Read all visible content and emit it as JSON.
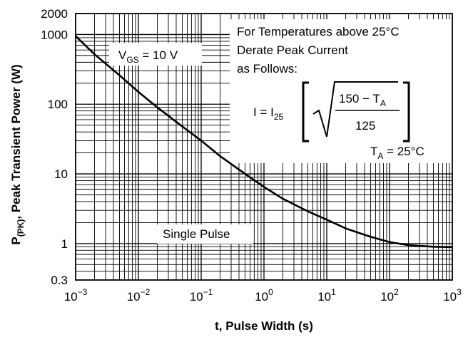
{
  "chart_data": {
    "type": "line",
    "xscale": "log",
    "yscale": "log",
    "xlim": [
      0.001,
      1000
    ],
    "ylim": [
      0.3,
      2000
    ],
    "x_ticks": [
      {
        "value": 0.001,
        "base": "10",
        "exp": "−3"
      },
      {
        "value": 0.01,
        "base": "10",
        "exp": "−2"
      },
      {
        "value": 0.1,
        "base": "10",
        "exp": "−1"
      },
      {
        "value": 1,
        "base": "10",
        "exp": "0"
      },
      {
        "value": 10,
        "base": "10",
        "exp": "1"
      },
      {
        "value": 100,
        "base": "10",
        "exp": "2"
      },
      {
        "value": 1000,
        "base": "10",
        "exp": "3"
      }
    ],
    "y_ticks": [
      {
        "value": 2000,
        "label": "2000"
      },
      {
        "value": 1000,
        "label": "1000"
      },
      {
        "value": 100,
        "label": "100"
      },
      {
        "value": 10,
        "label": "10"
      },
      {
        "value": 1,
        "label": "1"
      },
      {
        "value": 0.3,
        "label": "0.3"
      }
    ],
    "xlabel": "t, Pulse Width (s)",
    "ylabel_main": "P",
    "ylabel_sub": "(PK)",
    "ylabel_rest": ", Peak Transient Power (W)",
    "grid": true,
    "series": [
      {
        "x": [
          0.001,
          0.002,
          0.005,
          0.01,
          0.02,
          0.05,
          0.1,
          0.2,
          0.5,
          1,
          2,
          5,
          10,
          20,
          50,
          100,
          200,
          500,
          1000
        ],
        "y": [
          950,
          520,
          260,
          150,
          90,
          48,
          30,
          18,
          10,
          6.5,
          4.4,
          2.9,
          2.2,
          1.65,
          1.25,
          1.05,
          0.95,
          0.9,
          0.89
        ]
      }
    ],
    "annotations": {
      "vgs": {
        "main": "V",
        "sub": "GS",
        "rest": " = 10 V"
      },
      "single_pulse": "Single Pulse",
      "ta": {
        "main": "T",
        "sub": "A",
        "rest": " = 25°C"
      },
      "derate_lines": [
        "For Temperatures above 25°C",
        "Derate Peak Current",
        "as Follows:"
      ],
      "formula": {
        "lhs": "I = I",
        "lhs_sub": "25",
        "numerator_main": "150 − T",
        "numerator_sub": "A",
        "denominator": "125"
      }
    }
  }
}
